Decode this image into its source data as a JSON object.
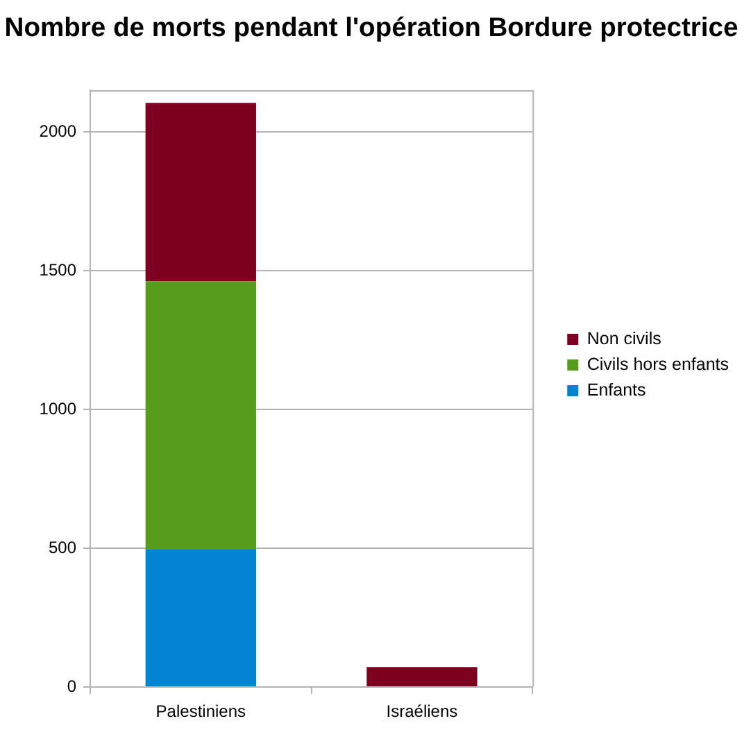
{
  "chart_data": {
    "type": "bar",
    "title": "Nombre de morts pendant l'opération Bordure protectrice",
    "categories": [
      "Palestiniens",
      "Israéliens"
    ],
    "series": [
      {
        "name": "Enfants",
        "color": "#0084d1",
        "values": [
          495,
          null
        ]
      },
      {
        "name": "Civils hors enfants",
        "color": "#579d1c",
        "values": [
          967,
          null
        ]
      },
      {
        "name": "Non civils",
        "color": "#7e0021",
        "values": [
          642,
          72
        ]
      }
    ],
    "stacked": true,
    "ylim": [
      0,
      2150
    ],
    "yticks": [
      0,
      500,
      1000,
      1500,
      2000
    ],
    "grid": "y",
    "legend": "right"
  }
}
